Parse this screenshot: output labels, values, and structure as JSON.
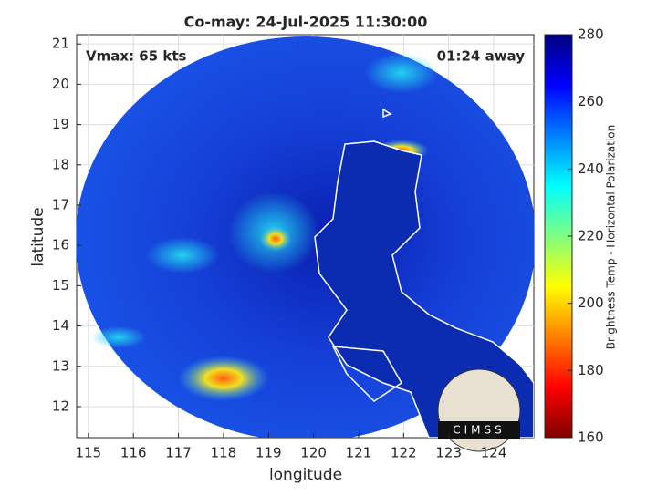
{
  "chart_data": {
    "type": "image-map",
    "title": "Co-may: 24-Jul-2025 11:30:00",
    "annotations": [
      "Vmax: 65 kts",
      "01:24 away"
    ],
    "x_label": "longitude",
    "y_label": "latitude",
    "xlim": [
      114.74,
      124.89
    ],
    "xticks": [
      115,
      116,
      117,
      118,
      119,
      120,
      121,
      122,
      123,
      124
    ],
    "ylim": [
      11.23,
      21.23
    ],
    "yticks": [
      12,
      13,
      14,
      15,
      16,
      17,
      18,
      19,
      20,
      21
    ],
    "grid": true,
    "colorbar": {
      "label": "Brightness Temp - Horizontal Polarization",
      "lim": [
        160,
        280
      ],
      "ticks": [
        160,
        180,
        200,
        220,
        240,
        260,
        280
      ],
      "colormap": "jet"
    },
    "logo": "CIMSS"
  }
}
